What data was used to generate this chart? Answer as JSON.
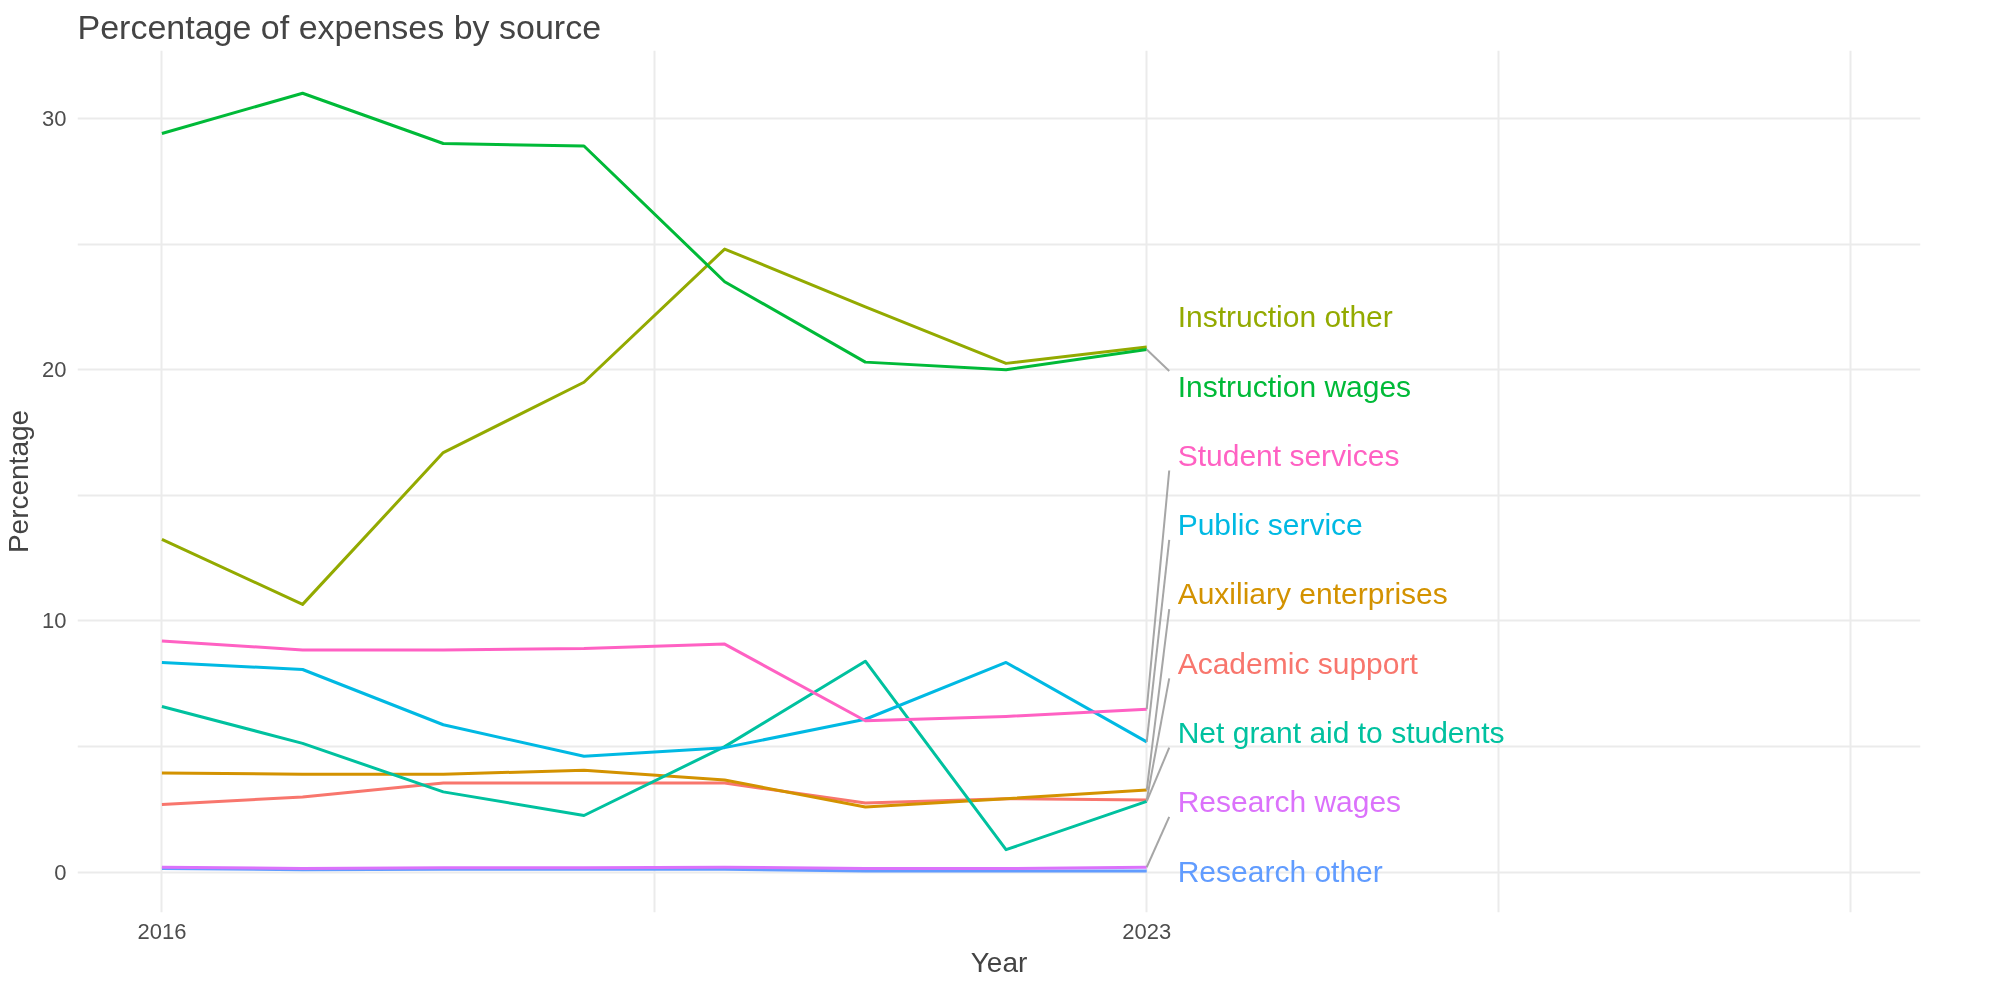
{
  "chart_data": {
    "type": "line",
    "title": "Percentage of expenses by source",
    "xlabel": "Year",
    "ylabel": "Percentage",
    "x": [
      2016,
      2017,
      2018,
      2019,
      2020,
      2021,
      2022,
      2023
    ],
    "xlim": [
      2015.4,
      2028.5
    ],
    "xticks": [
      2016,
      {
        "value": 2019.5,
        "label": null
      },
      2023,
      {
        "value": 2025.5,
        "label": null
      },
      {
        "value": 2028,
        "label": null
      }
    ],
    "ylim": [
      -1.6,
      32.7
    ],
    "yticks": [
      0,
      {
        "value": 5,
        "label": null
      },
      10,
      {
        "value": 15,
        "label": null
      },
      20,
      {
        "value": 25,
        "label": null
      },
      30
    ],
    "grid": true,
    "legend": false,
    "line_style": "solid",
    "series": [
      {
        "name": "Academic support",
        "color": "#f8766d",
        "values": [
          2.7,
          3.0,
          3.55,
          3.55,
          3.55,
          2.76,
          2.93,
          2.88
        ]
      },
      {
        "name": "Auxiliary enterprises",
        "color": "#d39200",
        "values": [
          3.95,
          3.9,
          3.9,
          4.06,
          3.67,
          2.6,
          2.93,
          3.27
        ]
      },
      {
        "name": "Instruction other",
        "color": "#93aa00",
        "values": [
          13.25,
          10.66,
          16.7,
          19.5,
          24.8,
          22.5,
          20.25,
          20.9
        ]
      },
      {
        "name": "Instruction wages",
        "color": "#00ba38",
        "values": [
          29.4,
          31.0,
          29.0,
          28.9,
          23.5,
          20.3,
          20.0,
          20.8
        ]
      },
      {
        "name": "Net grant aid to students",
        "color": "#00c19f",
        "values": [
          6.6,
          5.13,
          3.2,
          2.26,
          5.0,
          8.4,
          0.9,
          2.82
        ]
      },
      {
        "name": "Public service",
        "color": "#00b9e3",
        "values": [
          8.35,
          8.07,
          5.87,
          4.62,
          4.96,
          6.09,
          8.35,
          5.19
        ]
      },
      {
        "name": "Research other",
        "color": "#619cff",
        "values": [
          0.15,
          0.1,
          0.12,
          0.12,
          0.12,
          0.05,
          0.05,
          0.05
        ]
      },
      {
        "name": "Research wages",
        "color": "#db72fb",
        "values": [
          0.2,
          0.15,
          0.18,
          0.18,
          0.2,
          0.15,
          0.15,
          0.2
        ]
      },
      {
        "name": "Student services",
        "color": "#ff61c3",
        "values": [
          9.2,
          8.85,
          8.85,
          8.9,
          9.08,
          6.03,
          6.2,
          6.49
        ]
      }
    ]
  }
}
